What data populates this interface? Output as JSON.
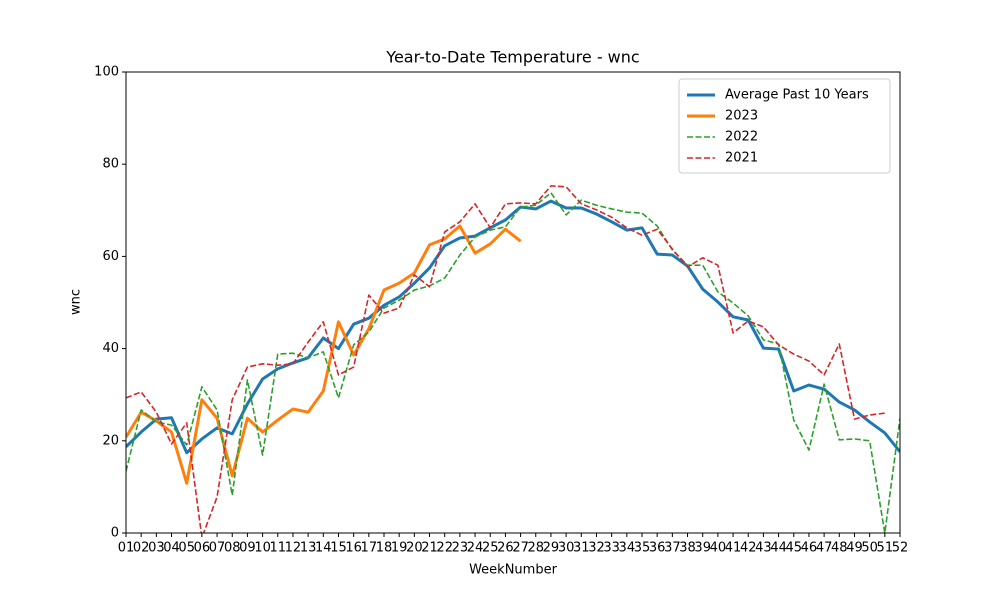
{
  "chart_data": {
    "type": "line",
    "title": "Year-to-Date Temperature - wnc",
    "x_label": "WeekNumber",
    "y_label": "wnc",
    "categories": [
      "01",
      "02",
      "03",
      "04",
      "05",
      "06",
      "07",
      "08",
      "09",
      "10",
      "11",
      "12",
      "13",
      "14",
      "15",
      "16",
      "17",
      "18",
      "19",
      "20",
      "21",
      "22",
      "23",
      "24",
      "25",
      "26",
      "27",
      "28",
      "29",
      "30",
      "31",
      "32",
      "33",
      "34",
      "35",
      "36",
      "37",
      "38",
      "39",
      "40",
      "41",
      "42",
      "43",
      "44",
      "45",
      "46",
      "47",
      "48",
      "49",
      "50",
      "51",
      "52"
    ],
    "ylim": [
      0,
      100
    ],
    "yticks": [
      0,
      20,
      40,
      60,
      80,
      100
    ],
    "legend": "upper right",
    "grid": false,
    "series": [
      {
        "name": "Average Past 10 Years",
        "color": "#1f77b4",
        "linestyle": "solid",
        "values": [
          18.7,
          21.9,
          24.7,
          25,
          17.4,
          20.4,
          22.8,
          21.5,
          28,
          33.4,
          35.6,
          36.9,
          38,
          42.3,
          40,
          45.3,
          46.6,
          49.4,
          51.2,
          54.2,
          57.5,
          62.3,
          64,
          64.4,
          66.2,
          67.9,
          70.7,
          70.3,
          72,
          70.5,
          70.5,
          69.2,
          67.5,
          65.7,
          66.2,
          60.5,
          60.3,
          57.9,
          52.9,
          50.1,
          46.9,
          46.2,
          40.1,
          39.9,
          30.8,
          32.1,
          31.2,
          28.4,
          26.7,
          24.1,
          21.7,
          17.6
        ]
      },
      {
        "name": "2023",
        "color": "#ff7f0e",
        "linestyle": "solid",
        "values": [
          20.8,
          26.2,
          24.3,
          21.9,
          10.8,
          28.9,
          24.9,
          12.4,
          24.9,
          21.9,
          24.5,
          26.9,
          26.2,
          30.8,
          45.8,
          38.6,
          44.3,
          52.7,
          54.2,
          56.4,
          62.5,
          63.8,
          66.6,
          60.7,
          62.7,
          65.9,
          63.3,
          null,
          null,
          null,
          null,
          null,
          null,
          null,
          null,
          null,
          null,
          null,
          null,
          null,
          null,
          null,
          null,
          null,
          null,
          null,
          null,
          null,
          null,
          null,
          null,
          null
        ]
      },
      {
        "name": "2022",
        "color": "#2ca02c",
        "linestyle": "dashed",
        "values": [
          13.4,
          26.7,
          24.1,
          23.4,
          19.1,
          31.7,
          26.7,
          8.2,
          33.2,
          16.9,
          38.8,
          39,
          38,
          39.3,
          29.3,
          40.8,
          43.6,
          48.8,
          50.5,
          52.7,
          53.6,
          55.3,
          60.3,
          64.2,
          65.7,
          66.4,
          70.7,
          71.1,
          73.8,
          69,
          72.2,
          71.1,
          70.3,
          69.6,
          69.4,
          66.6,
          61.4,
          58.1,
          58.1,
          52.3,
          49.9,
          47.1,
          41.9,
          41,
          24.5,
          18,
          32.3,
          20.2,
          20.4,
          20,
          0,
          24.9
        ]
      },
      {
        "name": "2021",
        "color": "#d62728",
        "linestyle": "dashed",
        "values": [
          29.3,
          30.6,
          26.2,
          19.3,
          23.9,
          -1,
          7.8,
          28.9,
          36,
          36.7,
          36.4,
          36.7,
          41.4,
          45.8,
          34.3,
          36,
          51.6,
          47.7,
          48.8,
          56,
          53.4,
          65.3,
          67.5,
          71.4,
          66.2,
          71.4,
          71.6,
          71.4,
          75.3,
          75.1,
          71.4,
          70.1,
          68.5,
          66.2,
          64.6,
          65.9,
          61.6,
          57.7,
          59.7,
          58.1,
          43.4,
          46,
          44.7,
          40.8,
          38.8,
          37.3,
          34.3,
          41,
          24.7,
          25.6,
          26,
          null
        ]
      }
    ]
  }
}
